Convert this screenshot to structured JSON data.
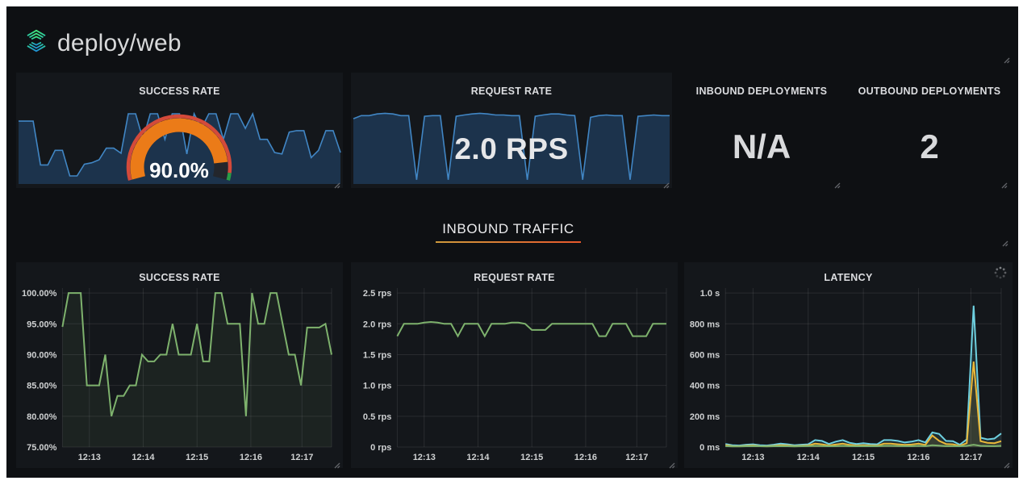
{
  "header": {
    "title": "deploy/web"
  },
  "stat_panels": {
    "success_rate": {
      "title": "SUCCESS RATE",
      "value": "90.0%"
    },
    "request_rate": {
      "title": "REQUEST RATE",
      "value": "2.0 RPS"
    },
    "inbound_deployments": {
      "title": "INBOUND DEPLOYMENTS",
      "value": "N/A"
    },
    "outbound_deployments": {
      "title": "OUTBOUND DEPLOYMENTS",
      "value": "2"
    }
  },
  "row": {
    "title": "INBOUND TRAFFIC"
  },
  "colors": {
    "accent_underline_start": "#cf9a3c",
    "accent_underline_end": "#e8582c",
    "sparkline_blue": "#4186c4",
    "series_green": "#7eb26d",
    "series_cyan": "#6ed0e0",
    "series_yellow": "#eab839",
    "gauge_orange": "#eb7b18",
    "threshold_red": "#d44a3a",
    "threshold_green": "#299c46"
  },
  "chart_data": {
    "success_gauge": {
      "type": "gauge",
      "min": 0,
      "max": 100,
      "value": 90.0,
      "display": "90.0%",
      "color": "#eb7b18",
      "track": "#23262c",
      "thresholds": [
        {
          "to": 96,
          "color": "#d44a3a"
        },
        {
          "to": 100,
          "color": "#299c46"
        }
      ]
    },
    "success_rate_sparkline": {
      "type": "sparkline",
      "unit": "%",
      "ymin": 0,
      "ymax": 105,
      "color": "#4186c4",
      "fill": "rgba(50,116,193,0.3)",
      "values": [
        85,
        85,
        85,
        25,
        25,
        45,
        45,
        10,
        10,
        26,
        28,
        32,
        48,
        48,
        41,
        95,
        95,
        60,
        95,
        95,
        60,
        95,
        95,
        40,
        95,
        75,
        95,
        95,
        60,
        95,
        95,
        75,
        95,
        60,
        60,
        42,
        40,
        70,
        72,
        72,
        35,
        45,
        72,
        72,
        42
      ]
    },
    "request_rate_sparkline": {
      "type": "sparkline",
      "unit": "rps",
      "ymin": 0,
      "ymax": 2.27,
      "color": "#4186c4",
      "fill": "rgba(50,116,193,0.3)",
      "values": [
        1.91,
        2,
        2,
        2.05,
        2.07,
        2.05,
        2,
        2,
        0.1,
        1.98,
        2,
        2,
        0.1,
        1.98,
        2.02,
        2.05,
        2.07,
        2.05,
        2.02,
        2.02,
        2,
        2,
        0.1,
        1.98,
        2.02,
        2.05,
        2.05,
        2.02,
        2,
        0.1,
        1.95,
        2,
        2.02,
        2,
        2,
        0.1,
        1.98,
        2,
        2.02,
        2,
        2
      ]
    },
    "success_rate_ts": {
      "type": "line",
      "title": "SUCCESS RATE",
      "grid": "rgba(255,255,255,0.09)",
      "ymin": 75,
      "ymax": 100.8,
      "yticks": [
        {
          "v": 100,
          "label": "100.00%"
        },
        {
          "v": 95,
          "label": "95.00%"
        },
        {
          "v": 90,
          "label": "90.00%"
        },
        {
          "v": 85,
          "label": "85.00%"
        },
        {
          "v": 80,
          "label": "80.00%"
        },
        {
          "v": 75,
          "label": "75.00%"
        }
      ],
      "xticks": [
        {
          "f": 0.1,
          "label": "12:13"
        },
        {
          "f": 0.3,
          "label": "12:14"
        },
        {
          "f": 0.5,
          "label": "12:15"
        },
        {
          "f": 0.7,
          "label": "12:16"
        },
        {
          "f": 0.89,
          "label": "12:17"
        }
      ],
      "series": [
        {
          "name": "success rate",
          "color": "#7eb26d",
          "fill": 0.08,
          "values": [
            94.5,
            100,
            100,
            100,
            85,
            85,
            85,
            90,
            80,
            83.3,
            83.3,
            85,
            85,
            90,
            88.9,
            88.9,
            90,
            90,
            95,
            90,
            90,
            90,
            95,
            88.9,
            88.9,
            100,
            100,
            95,
            95,
            95,
            80,
            100,
            95,
            95,
            100,
            100,
            95,
            90,
            90,
            85,
            94.4,
            94.4,
            94.4,
            95,
            90
          ]
        }
      ]
    },
    "request_rate_ts": {
      "type": "line",
      "title": "REQUEST RATE",
      "grid": "rgba(255,255,255,0.09)",
      "ymin": 0,
      "ymax": 2.58,
      "yticks": [
        {
          "v": 2.5,
          "label": "2.5 rps"
        },
        {
          "v": 2.0,
          "label": "2.0 rps"
        },
        {
          "v": 1.5,
          "label": "1.5 rps"
        },
        {
          "v": 1.0,
          "label": "1.0 rps"
        },
        {
          "v": 0.5,
          "label": "0.5 rps"
        },
        {
          "v": 0,
          "label": "0 rps"
        }
      ],
      "xticks": [
        {
          "f": 0.1,
          "label": "12:13"
        },
        {
          "f": 0.3,
          "label": "12:14"
        },
        {
          "f": 0.5,
          "label": "12:15"
        },
        {
          "f": 0.7,
          "label": "12:16"
        },
        {
          "f": 0.89,
          "label": "12:17"
        }
      ],
      "series": [
        {
          "name": "request rate",
          "color": "#7eb26d",
          "fill": 0,
          "values": [
            1.8,
            2,
            2,
            2,
            2.02,
            2.03,
            2.02,
            2,
            2,
            1.8,
            2,
            2,
            2,
            1.8,
            2,
            2,
            2,
            2.02,
            2.02,
            2,
            1.9,
            1.9,
            1.9,
            2,
            2,
            2,
            2,
            2,
            2,
            2,
            1.8,
            1.8,
            2,
            2,
            2,
            1.8,
            1.8,
            1.8,
            2,
            2,
            2
          ]
        }
      ]
    },
    "latency_ts": {
      "type": "line",
      "title": "LATENCY",
      "grid": "rgba(255,255,255,0.09)",
      "ymin": 0,
      "ymax": 1032,
      "yticks": [
        {
          "v": 1000,
          "label": "1.0 s"
        },
        {
          "v": 800,
          "label": "800 ms"
        },
        {
          "v": 600,
          "label": "600 ms"
        },
        {
          "v": 400,
          "label": "400 ms"
        },
        {
          "v": 200,
          "label": "200 ms"
        },
        {
          "v": 0,
          "label": "0 ms"
        }
      ],
      "xticks": [
        {
          "f": 0.1,
          "label": "12:13"
        },
        {
          "f": 0.3,
          "label": "12:14"
        },
        {
          "f": 0.5,
          "label": "12:15"
        },
        {
          "f": 0.7,
          "label": "12:16"
        },
        {
          "f": 0.89,
          "label": "12:17"
        }
      ],
      "series": [
        {
          "name": "cyan-series",
          "color": "#6ed0e0",
          "fill": 0.12,
          "values": [
            20,
            12,
            10,
            15,
            18,
            12,
            10,
            15,
            22,
            18,
            12,
            15,
            18,
            45,
            40,
            20,
            35,
            45,
            28,
            20,
            25,
            20,
            18,
            45,
            45,
            40,
            30,
            35,
            45,
            30,
            95,
            85,
            40,
            38,
            15,
            50,
            918,
            60,
            50,
            55,
            88
          ]
        },
        {
          "name": "yellow-series",
          "color": "#eab839",
          "fill": 0.12,
          "values": [
            12,
            6,
            5,
            8,
            10,
            6,
            5,
            8,
            12,
            10,
            6,
            8,
            10,
            22,
            18,
            10,
            16,
            22,
            14,
            10,
            12,
            10,
            9,
            22,
            22,
            18,
            14,
            16,
            22,
            14,
            75,
            40,
            20,
            18,
            8,
            25,
            555,
            38,
            28,
            25,
            38
          ]
        },
        {
          "name": "green-series",
          "color": "#7eb26d",
          "fill": 0.08,
          "values": [
            6,
            4,
            4,
            5,
            6,
            5,
            4,
            5,
            6,
            5,
            4,
            5,
            6,
            8,
            7,
            5,
            6,
            8,
            6,
            5,
            6,
            5,
            5,
            8,
            8,
            7,
            6,
            6,
            8,
            6,
            12,
            9,
            6,
            6,
            5,
            8,
            15,
            8,
            7,
            6,
            8
          ]
        }
      ]
    }
  }
}
